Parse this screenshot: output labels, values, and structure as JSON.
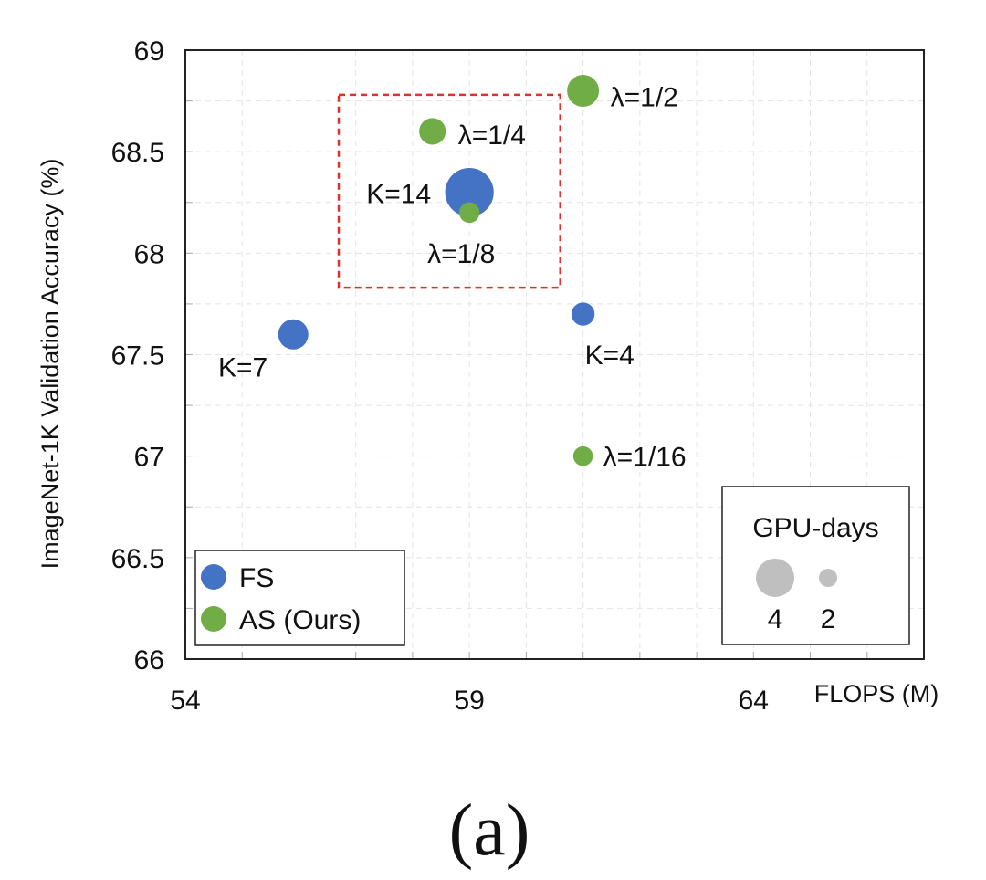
{
  "chart_data": {
    "type": "scatter",
    "title": "",
    "caption": "(a)",
    "xlabel": "FLOPS (M)",
    "ylabel": "ImageNet-1K Validation Accuracy (%)",
    "xlim": [
      54,
      67
    ],
    "ylim": [
      66,
      69
    ],
    "xticks": [
      54,
      59,
      64
    ],
    "xtick_labels": [
      "54",
      "59",
      "64"
    ],
    "yticks": [
      66,
      66.5,
      67,
      67.5,
      68,
      68.5,
      69
    ],
    "ytick_labels": [
      "66",
      "66.5",
      "67",
      "67.5",
      "68",
      "68.5",
      "69"
    ],
    "grid": true,
    "series": [
      {
        "name": "FS",
        "color": "#4472C4",
        "points": [
          {
            "x": 55.9,
            "y": 67.6,
            "gpu_days": 2.4,
            "label": "K=7"
          },
          {
            "x": 59.0,
            "y": 68.3,
            "gpu_days": 4.5,
            "label": "K=14"
          },
          {
            "x": 61.0,
            "y": 67.7,
            "gpu_days": 1.6,
            "label": "K=4"
          }
        ]
      },
      {
        "name": "AS (Ours)",
        "color": "#70AD47",
        "points": [
          {
            "x": 58.35,
            "y": 68.6,
            "gpu_days": 2.0,
            "label": "λ=1/4"
          },
          {
            "x": 59.0,
            "y": 68.2,
            "gpu_days": 1.3,
            "label": "λ=1/8"
          },
          {
            "x": 61.0,
            "y": 68.8,
            "gpu_days": 2.6,
            "label": "λ=1/2"
          },
          {
            "x": 61.0,
            "y": 67.0,
            "gpu_days": 1.2,
            "label": "λ=1/16"
          }
        ]
      }
    ],
    "legend": {
      "placement": "bottom-left",
      "entries": [
        {
          "name": "FS",
          "color": "#4472C4"
        },
        {
          "name": "AS (Ours)",
          "color": "#70AD47"
        }
      ]
    },
    "size_legend": {
      "title": "GPU-days",
      "placement": "bottom-right",
      "color": "#BFBFBF",
      "entries": [
        {
          "label": "4",
          "gpu_days": 4
        },
        {
          "label": "2",
          "gpu_days": 2
        }
      ]
    },
    "highlight_box": {
      "color": "#E03030",
      "x_range": [
        56.7,
        60.6
      ],
      "y_range": [
        67.83,
        68.78
      ]
    }
  }
}
